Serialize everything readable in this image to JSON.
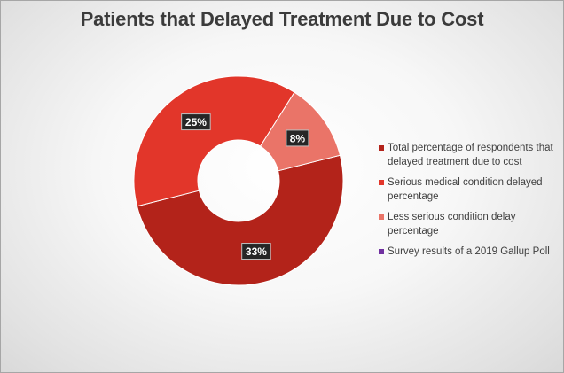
{
  "chart_data": {
    "type": "pie",
    "title": "Patients that Delayed Treatment Due to Cost",
    "donut": true,
    "slices": [
      {
        "name": "Total percentage of respondents that delayed treatment due to cost",
        "value": 33,
        "label": "33%",
        "color": "#b3231a"
      },
      {
        "name": "Serious medical condition delayed percentage",
        "value": 25,
        "label": "25%",
        "color": "#e2362a"
      },
      {
        "name": "Less serious condition delay percentage",
        "value": 8,
        "label": "8%",
        "color": "#ea7468"
      },
      {
        "name": "Survey results of a 2019 Gallup Poll",
        "value": 0,
        "label": "",
        "color": "#7030a0"
      }
    ],
    "legend_position": "right"
  },
  "colors": {
    "data_label_background": "#262626",
    "data_label_text": "#ffffff",
    "slice_border": "#ffffff"
  }
}
